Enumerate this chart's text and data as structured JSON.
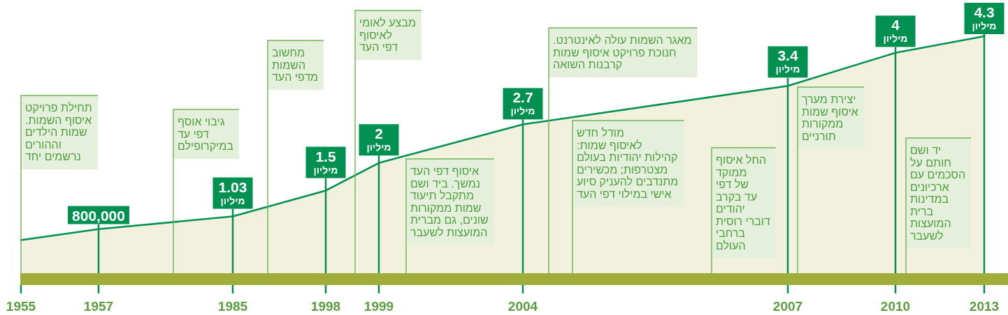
{
  "chart_data": {
    "type": "area",
    "categories": [
      "1955",
      "1957",
      "1985",
      "1998",
      "1999",
      "2004",
      "2007",
      "2010",
      "2013"
    ],
    "values": [
      0.6,
      0.8,
      1.03,
      1.5,
      2,
      2.7,
      3.4,
      4,
      4.3
    ],
    "color": "#009150",
    "value_labels": [
      null,
      null,
      "1.03\nמיליון",
      "1.5\nמיליון",
      "2\nמיליון",
      "2.7\nמיליון",
      "3.4\nמיליון",
      "4\nמיליון",
      "4.3\nמיליון"
    ],
    "annotations": [
      "תחילת פרויקט\nאיסוף השמות.\nשמות הילדים\nוההורים\nנרשמים יחד",
      {
        "text": "800,000",
        "x": "1957",
        "y": 0.8
      },
      "גיבוי אוסף\nדפי עד\nבמיקרופילם",
      "מחשוב\nהשמות\nמדפי העד",
      "מבצע לאומי\nלאיסוף\nדפי העד",
      "איסוף דפי העד\nנמשך. ביד ושם\nמתקבל תיעוד\nשמות ממקורות\nשונים, גם מברית\nהמועצות לשעבר",
      "מאגר השמות עולה לאינטרנט.\nחנוכת פרויקט איסוף שמות\nקרבנות השואה",
      "מודל חדש\nלאיסוף שמות:\nקהילות יהודיות בעולם\nמצטרפות; מכשירים\nמתנדבים להעניק סיוע\nאישי במילוי דפי העד",
      "החל איסוף\nממוקד\nשל דפי\nעד בקרב\nיהודים\nדוברי רוסית\nברחבי\nהעולם",
      "יצירת מערך\nאיסוף שמות\nממקורות\nתורניים",
      "יד ושם\nחותם על\nהסכמים עם\nארכיונים\nבמדינות\nברית\nהמועצות\nלשעבר"
    ]
  }
}
